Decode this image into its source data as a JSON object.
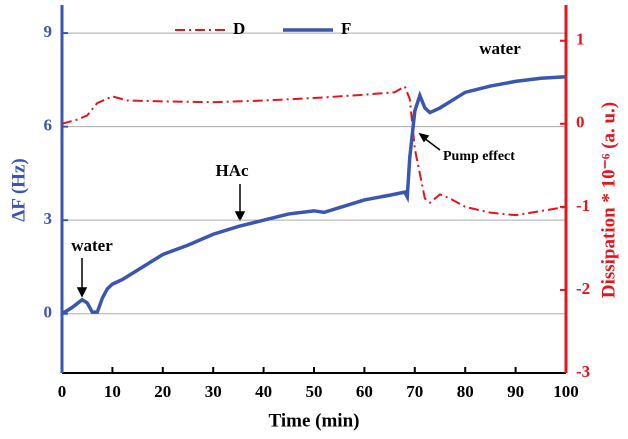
{
  "chart_data": {
    "type": "line",
    "xlabel": "Time (min)",
    "ylabel": "ΔF (Hz)",
    "y2label": "Dissipation * 10⁻⁶ (a. u.)",
    "xlim": [
      0,
      100
    ],
    "xticks": [
      0,
      10,
      20,
      30,
      40,
      50,
      60,
      70,
      80,
      90,
      100
    ],
    "ylim": [
      -1.9,
      9.9
    ],
    "yticks": [
      0,
      3,
      6,
      9
    ],
    "y2lim": [
      -3,
      1.43
    ],
    "y2ticks": [
      -3,
      -2,
      -1,
      0,
      1
    ],
    "grid": true,
    "legend": "top",
    "series": [
      {
        "name": "D",
        "color": "#e3161c",
        "axis": "y2",
        "style": "dashdot",
        "x": [
          0,
          3,
          5,
          7,
          10,
          13,
          20,
          30,
          40,
          50,
          60,
          66,
          68,
          69,
          70,
          71,
          72,
          73,
          74,
          75,
          77,
          80,
          85,
          90,
          95,
          100
        ],
        "values": [
          0,
          0.05,
          0.1,
          0.25,
          0.33,
          0.28,
          0.27,
          0.26,
          0.28,
          0.31,
          0.35,
          0.38,
          0.45,
          0.3,
          -0.3,
          -0.6,
          -0.9,
          -0.95,
          -0.9,
          -0.85,
          -0.9,
          -1.0,
          -1.07,
          -1.1,
          -1.05,
          -1.0
        ]
      },
      {
        "name": "F",
        "color": "#3a56b0",
        "axis": "y",
        "style": "solid",
        "x": [
          0,
          2,
          4,
          5,
          6,
          7,
          8,
          9,
          10,
          12,
          15,
          18,
          20,
          25,
          30,
          35,
          40,
          45,
          50,
          52,
          55,
          60,
          65,
          68,
          68.5,
          69,
          70,
          71,
          72,
          73,
          75,
          78,
          80,
          85,
          90,
          95,
          100
        ],
        "values": [
          0,
          0.2,
          0.45,
          0.35,
          0.05,
          0.05,
          0.5,
          0.8,
          0.95,
          1.1,
          1.4,
          1.7,
          1.9,
          2.2,
          2.55,
          2.8,
          3.0,
          3.2,
          3.3,
          3.25,
          3.4,
          3.65,
          3.8,
          3.9,
          3.75,
          5.0,
          6.5,
          7.0,
          6.6,
          6.45,
          6.6,
          6.9,
          7.1,
          7.3,
          7.45,
          7.55,
          7.6
        ]
      }
    ],
    "annotations": [
      "water",
      "HAc",
      "water",
      "Pump effect"
    ]
  }
}
